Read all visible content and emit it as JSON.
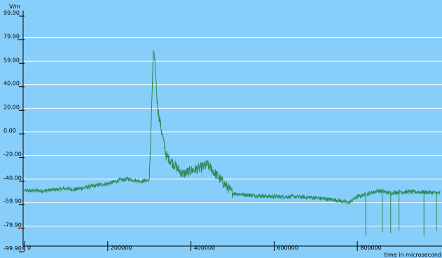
{
  "chart_data": {
    "type": "line",
    "title": "",
    "ylabel": "V/m",
    "xlabel": "time in microsecond",
    "ylim": [
      -99.9,
      99.9
    ],
    "xlim": [
      0,
      1000000
    ],
    "grid": true,
    "colors": {
      "background": "#87cefa",
      "grid": "#ffffff",
      "line": "#2e8b57",
      "axis": "#000000",
      "marker": "#cc0000"
    },
    "y_ticks": [
      {
        "value": 99.9,
        "label": "99.90"
      },
      {
        "value": 79.9,
        "label": "79.90"
      },
      {
        "value": 59.9,
        "label": "59.90"
      },
      {
        "value": 40.0,
        "label": "40.00"
      },
      {
        "value": 20.0,
        "label": "20.00"
      },
      {
        "value": 0.0,
        "label": "0.00"
      },
      {
        "value": -20.0,
        "label": "-20.00"
      },
      {
        "value": -40.0,
        "label": "-40.00"
      },
      {
        "value": -59.9,
        "label": "-59.90"
      },
      {
        "value": -79.9,
        "label": "-79.90"
      },
      {
        "value": -99.9,
        "label": "-99.90"
      }
    ],
    "x_ticks": [
      {
        "value": 0,
        "label": "0"
      },
      {
        "value": 200000,
        "label": "200000"
      },
      {
        "value": 400000,
        "label": "400000"
      },
      {
        "value": 600000,
        "label": "600000"
      },
      {
        "value": 800000,
        "label": "800000"
      }
    ],
    "markers_y": [
      79.9,
      -79.9
    ],
    "series": [
      {
        "x": [
          0,
          50000,
          100000,
          120000,
          150000,
          180000,
          200000,
          230000,
          250000,
          280000,
          300000,
          310000,
          315000,
          318000,
          320000,
          330000,
          340000,
          360000,
          380000,
          400000,
          420000,
          440000,
          460000,
          480000,
          500000,
          520000,
          550000,
          600000,
          650000,
          700000,
          750000,
          780000,
          800000,
          830000,
          850000,
          880000,
          900000,
          950000,
          1000000
        ],
        "y": [
          -50,
          -50,
          -48,
          -49,
          -47,
          -45,
          -44,
          -41,
          -40,
          -42,
          -41,
          70,
          50,
          30,
          20,
          0,
          -20,
          -28,
          -36,
          -33,
          -31,
          -28,
          -36,
          -44,
          -52,
          -53,
          -54,
          -55,
          -55,
          -56,
          -58,
          -60,
          -55,
          -52,
          -50,
          -52,
          -51,
          -51,
          -52
        ]
      }
    ],
    "spikes": [
      {
        "x": 820000,
        "y": -88
      },
      {
        "x": 860000,
        "y": -85
      },
      {
        "x": 880000,
        "y": -86
      },
      {
        "x": 900000,
        "y": -84
      },
      {
        "x": 960000,
        "y": -88
      },
      {
        "x": 990000,
        "y": -84
      }
    ]
  }
}
